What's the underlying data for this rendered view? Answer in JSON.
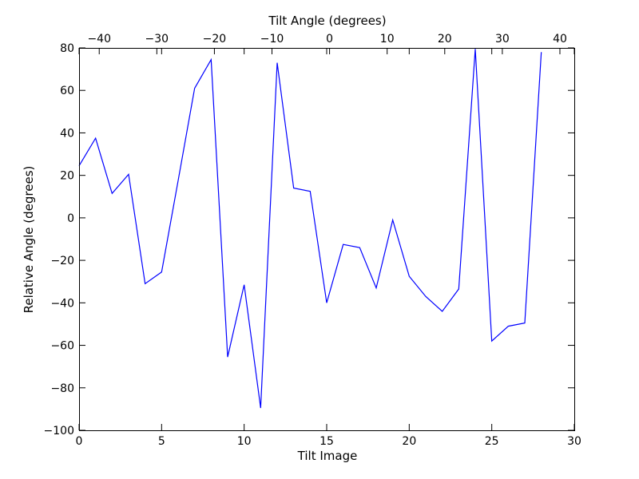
{
  "chart_data": {
    "type": "line",
    "xlabel": "Tilt Image",
    "ylabel": "Relative Angle (degrees)",
    "top_xlabel": "Tilt Angle (degrees)",
    "xlim": [
      0,
      30
    ],
    "ylim": [
      -100,
      80
    ],
    "top_xlim": [
      -43.5,
      42.5
    ],
    "x_ticks": [
      0,
      5,
      10,
      15,
      20,
      25,
      30
    ],
    "x_tick_labels": [
      "0",
      "5",
      "10",
      "15",
      "20",
      "25",
      "30"
    ],
    "top_x_ticks": [
      -40,
      -30,
      -20,
      -10,
      0,
      10,
      20,
      30,
      40
    ],
    "top_x_tick_labels": [
      "−40",
      "−30",
      "−20",
      "−10",
      "0",
      "10",
      "20",
      "30",
      "40"
    ],
    "y_ticks": [
      -100,
      -80,
      -60,
      -40,
      -20,
      0,
      20,
      40,
      60,
      80
    ],
    "y_tick_labels": [
      "−100",
      "−80",
      "−60",
      "−40",
      "−20",
      "0",
      "20",
      "40",
      "60",
      "80"
    ],
    "grid": false,
    "series": [
      {
        "color": "#0000ff",
        "x": [
          0,
          1,
          2,
          3,
          4,
          5,
          6,
          7,
          8,
          9,
          10,
          11,
          12,
          13,
          14,
          15,
          16,
          17,
          18,
          19,
          20,
          21,
          22,
          23,
          24,
          25,
          26,
          27,
          28
        ],
        "y": [
          24.5,
          37.5,
          11.5,
          20.5,
          -31,
          -25.5,
          17.5,
          61,
          74.5,
          -65.5,
          -31.5,
          -89.5,
          73,
          14,
          12.5,
          -40,
          -12.5,
          -14,
          -33,
          -1,
          -27.5,
          -37,
          -44,
          -33.5,
          79.5,
          -58,
          -51,
          -49.5,
          78
        ]
      }
    ]
  }
}
